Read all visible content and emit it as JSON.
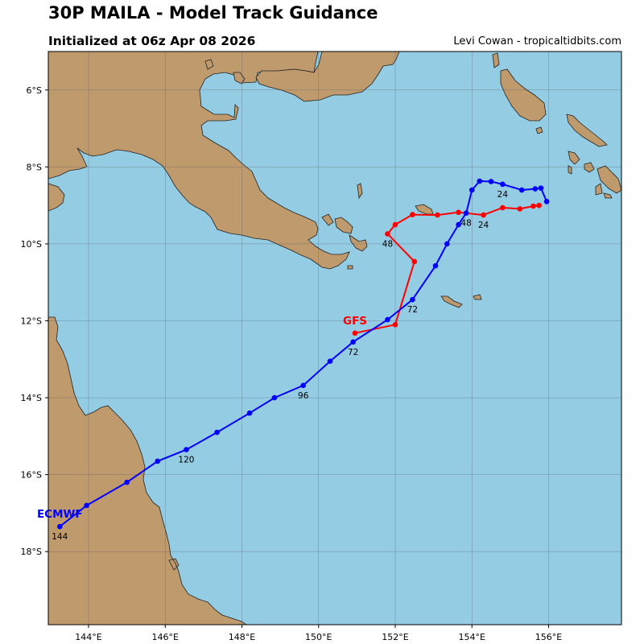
{
  "header": {
    "title": "30P MAILA - Model Track Guidance",
    "initialized": "Initialized at 06z Apr 08 2026",
    "credit": "Levi Cowan - tropicaltidbits.com"
  },
  "colors": {
    "ocean": "#94cce3",
    "land": "#be9a6c",
    "gfs": "#ff0000",
    "ecmwf": "#0000ff"
  },
  "map": {
    "lon_range": [
      142.95,
      157.9
    ],
    "lat_range": [
      -19.9,
      -5.0
    ],
    "lon_ticks": [
      144,
      146,
      148,
      150,
      152,
      154,
      156
    ],
    "lon_tick_labels": [
      "144°E",
      "146°E",
      "148°E",
      "150°E",
      "152°E",
      "154°E",
      "156°E"
    ],
    "lat_ticks": [
      -6,
      -8,
      -10,
      -12,
      -14,
      -16,
      -18
    ],
    "lat_tick_labels": [
      "6°S",
      "8°S",
      "10°S",
      "12°S",
      "14°S",
      "16°S",
      "18°S"
    ],
    "grid": true
  },
  "chart_data": {
    "type": "scatter",
    "series": [
      {
        "name": "GFS",
        "color": "#ff0000",
        "points": [
          [
            155.75,
            -9.0
          ],
          [
            155.6,
            -9.02
          ],
          [
            155.25,
            -9.09
          ],
          [
            154.8,
            -9.06
          ],
          [
            154.3,
            -9.25
          ],
          [
            153.65,
            -9.18
          ],
          [
            153.1,
            -9.25
          ],
          [
            152.45,
            -9.24
          ],
          [
            152.0,
            -9.5
          ],
          [
            151.8,
            -9.74
          ],
          [
            152.5,
            -10.46
          ],
          [
            152.0,
            -12.1
          ],
          [
            150.95,
            -12.32
          ]
        ],
        "labels": [
          {
            "text": "24",
            "lon": 154.3,
            "lat": -9.25
          },
          {
            "text": "48",
            "lon": 151.8,
            "lat": -9.74
          },
          {
            "text": "GFS",
            "lon": 150.95,
            "lat": -12.32
          }
        ]
      },
      {
        "name": "ECMWF",
        "color": "#0000ff",
        "points": [
          [
            155.95,
            -8.9
          ],
          [
            155.8,
            -8.55
          ],
          [
            155.65,
            -8.57
          ],
          [
            155.3,
            -8.6
          ],
          [
            154.8,
            -8.45
          ],
          [
            154.5,
            -8.38
          ],
          [
            154.2,
            -8.37
          ],
          [
            154.0,
            -8.6
          ],
          [
            153.85,
            -9.2
          ],
          [
            153.65,
            -9.5
          ],
          [
            153.35,
            -10.0
          ],
          [
            153.05,
            -10.57
          ],
          [
            152.45,
            -11.45
          ],
          [
            151.8,
            -11.97
          ],
          [
            150.9,
            -12.55
          ],
          [
            150.3,
            -13.05
          ],
          [
            149.6,
            -13.68
          ],
          [
            148.85,
            -14.0
          ],
          [
            148.2,
            -14.4
          ],
          [
            147.35,
            -14.9
          ],
          [
            146.55,
            -15.35
          ],
          [
            145.8,
            -15.65
          ],
          [
            145.0,
            -16.2
          ],
          [
            143.95,
            -16.8
          ],
          [
            143.25,
            -17.35
          ]
        ],
        "labels": [
          {
            "text": "24",
            "lon": 154.8,
            "lat": -8.45
          },
          {
            "text": "48",
            "lon": 153.85,
            "lat": -9.2
          },
          {
            "text": "72",
            "lon": 152.45,
            "lat": -11.45
          },
          {
            "text": "72",
            "lon": 150.9,
            "lat": -12.55
          },
          {
            "text": "96",
            "lon": 149.6,
            "lat": -13.68
          },
          {
            "text": "120",
            "lon": 146.55,
            "lat": -15.35
          },
          {
            "text": "144",
            "lon": 143.25,
            "lat": -17.35
          },
          {
            "text": "ECMWF",
            "lon": 143.25,
            "lat": -17.35
          }
        ]
      }
    ]
  }
}
